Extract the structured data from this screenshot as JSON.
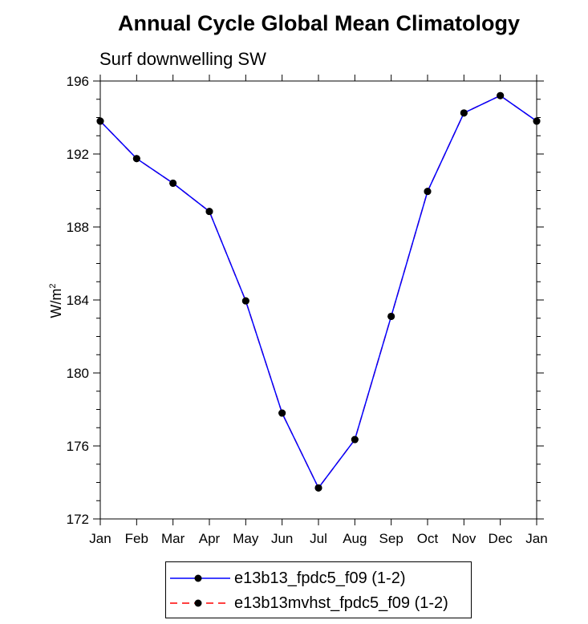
{
  "chart_data": {
    "type": "line",
    "title": "Annual Cycle Global Mean Climatology",
    "subtitle": "Surf downwelling SW",
    "xlabel": "",
    "ylabel": "W/m",
    "ylabel_superscript": "2",
    "categories": [
      "Jan",
      "Feb",
      "Mar",
      "Apr",
      "May",
      "Jun",
      "Jul",
      "Aug",
      "Sep",
      "Oct",
      "Nov",
      "Dec",
      "Jan"
    ],
    "ylim": [
      172,
      196
    ],
    "yticks": [
      172,
      176,
      180,
      184,
      188,
      192,
      196
    ],
    "grid": false,
    "legend_position": "bottom",
    "series": [
      {
        "name": "e13b13_fpdc5_f09 (1-2)",
        "color": "#0000ff",
        "dash": "solid",
        "marker_color": "#000000",
        "values": [
          193.8,
          191.75,
          190.4,
          188.85,
          183.95,
          177.8,
          173.7,
          176.35,
          183.1,
          189.95,
          194.25,
          195.2,
          193.8
        ]
      },
      {
        "name": "e13b13mvhst_fpdc5_f09 (1-2)",
        "color": "#ff0000",
        "dash": "dashed",
        "marker_color": "#000000",
        "values": [
          193.8,
          191.75,
          190.4,
          188.85,
          183.95,
          177.8,
          173.7,
          176.35,
          183.1,
          189.95,
          194.25,
          195.2,
          193.8
        ]
      }
    ]
  }
}
